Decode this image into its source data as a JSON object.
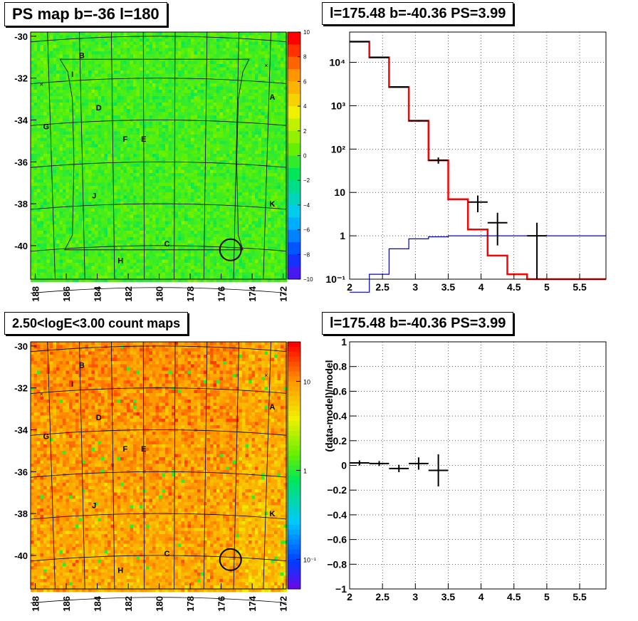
{
  "panels": {
    "ps_map": {
      "title": "PS map b=-36 l=180",
      "colorbar_ticks": [
        "10",
        "8",
        "6",
        "4",
        "2",
        "0",
        "−2",
        "−4",
        "−6",
        "−8",
        "−10"
      ]
    },
    "count_map": {
      "title": "2.50<logE<3.00 count maps",
      "colorbar_ticks": [
        "10",
        "1",
        "10⁻¹"
      ]
    },
    "spectrum": {
      "title": "l=175.48 b=-40.36 PS=3.99"
    },
    "residual": {
      "title": "l=175.48 b=-40.36 PS=3.99"
    }
  },
  "chart_data": [
    {
      "type": "heatmap",
      "name": "ps_map",
      "title": "PS map b=-36 l=180",
      "x_ticks": [
        188,
        186,
        184,
        182,
        180,
        178,
        176,
        174,
        172
      ],
      "y_ticks": [
        -30,
        -32,
        -34,
        -36,
        -38,
        -40
      ],
      "xlim": [
        188.3,
        171.8
      ],
      "ylim": [
        -41.6,
        -29.8
      ],
      "z_range": [
        -10,
        10
      ],
      "colorbar_ticks": [
        10,
        8,
        6,
        4,
        2,
        0,
        -2,
        -4,
        -6,
        -8,
        -10
      ],
      "source_labels": [
        {
          "label": "B",
          "l": 185.0,
          "b": -30.9
        },
        {
          "label": "I",
          "l": 185.6,
          "b": -31.8
        },
        {
          "label": "A",
          "l": 172.7,
          "b": -32.9
        },
        {
          "label": "D",
          "l": 183.9,
          "b": -33.4
        },
        {
          "label": "G",
          "l": 187.3,
          "b": -34.3
        },
        {
          "label": "F",
          "l": 182.2,
          "b": -34.9
        },
        {
          "label": "E",
          "l": 181.0,
          "b": -34.9
        },
        {
          "label": "J",
          "l": 184.2,
          "b": -37.6
        },
        {
          "label": "K",
          "l": 172.7,
          "b": -38.0
        },
        {
          "label": "C",
          "l": 179.5,
          "b": -39.9
        },
        {
          "label": "H",
          "l": 182.5,
          "b": -40.7
        }
      ],
      "circle": {
        "l": 175.4,
        "b": -40.2
      }
    },
    {
      "type": "line",
      "name": "spectrum",
      "title": "l=175.48 b=-40.36 PS=3.99",
      "xlim": [
        2,
        5.9
      ],
      "ylim": [
        0.1,
        50000
      ],
      "log_y": true,
      "grid": true,
      "x_ticks": [
        2,
        2.5,
        3,
        3.5,
        4,
        4.5,
        5,
        5.5
      ],
      "y_ticks": [
        "10⁻¹",
        "1",
        "10",
        "10²",
        "10³",
        "10⁴"
      ],
      "series": [
        {
          "color": "#ff0000",
          "style": "step",
          "edges": [
            2,
            2.3,
            2.6,
            2.9,
            3.2,
            3.5,
            3.8,
            4.1,
            4.4,
            4.7,
            5.0,
            5.9
          ],
          "values": [
            30000,
            13000,
            2700,
            450,
            55,
            7,
            1.4,
            0.35,
            0.13,
            0.1,
            0.1
          ]
        },
        {
          "color": "#0000cc",
          "style": "step",
          "edges": [
            2,
            2.3,
            2.6,
            2.9,
            3.2,
            3.5,
            3.8,
            4.1,
            4.4,
            4.7,
            5.0,
            5.9
          ],
          "values": [
            0.05,
            0.13,
            0.5,
            0.85,
            0.95,
            1.0,
            1.0,
            1.0,
            1.0,
            1.0,
            1.0
          ]
        },
        {
          "color": "#000000",
          "style": "errorbar",
          "points": [
            {
              "x": 2.15,
              "y": 30000,
              "xerr": 0.15,
              "ylo": 29500,
              "yhi": 30500
            },
            {
              "x": 2.45,
              "y": 13000,
              "xerr": 0.15,
              "ylo": 12800,
              "yhi": 13200
            },
            {
              "x": 2.75,
              "y": 2700,
              "xerr": 0.15,
              "ylo": 2620,
              "yhi": 2780
            },
            {
              "x": 3.05,
              "y": 450,
              "xerr": 0.15,
              "ylo": 430,
              "yhi": 470
            },
            {
              "x": 3.35,
              "y": 55,
              "xerr": 0.15,
              "ylo": 46,
              "yhi": 64
            },
            {
              "x": 3.95,
              "y": 6,
              "xerr": 0.15,
              "ylo": 3.5,
              "yhi": 8.5
            },
            {
              "x": 4.25,
              "y": 2,
              "xerr": 0.15,
              "ylo": 0.6,
              "yhi": 3.4
            },
            {
              "x": 4.85,
              "y": 1,
              "xerr": 0.15,
              "ylo": 0.1,
              "yhi": 2.0
            }
          ]
        }
      ]
    },
    {
      "type": "heatmap",
      "name": "count_map",
      "title": "2.50<logE<3.00 count maps",
      "x_ticks": [
        188,
        186,
        184,
        182,
        180,
        178,
        176,
        174,
        172
      ],
      "y_ticks": [
        -30,
        -32,
        -34,
        -36,
        -38,
        -40
      ],
      "xlim": [
        188.3,
        171.8
      ],
      "ylim": [
        -41.6,
        -29.8
      ],
      "log_z": true,
      "colorbar_ticks": [
        "10",
        "1",
        "10⁻¹"
      ],
      "source_labels": [
        {
          "label": "B",
          "l": 185.0,
          "b": -30.9
        },
        {
          "label": "I",
          "l": 185.6,
          "b": -31.8
        },
        {
          "label": "A",
          "l": 172.7,
          "b": -32.9
        },
        {
          "label": "D",
          "l": 183.9,
          "b": -33.4
        },
        {
          "label": "G",
          "l": 187.3,
          "b": -34.3
        },
        {
          "label": "F",
          "l": 182.2,
          "b": -34.9
        },
        {
          "label": "E",
          "l": 181.0,
          "b": -34.9
        },
        {
          "label": "J",
          "l": 184.2,
          "b": -37.6
        },
        {
          "label": "K",
          "l": 172.7,
          "b": -38.0
        },
        {
          "label": "C",
          "l": 179.5,
          "b": -39.9
        },
        {
          "label": "H",
          "l": 182.5,
          "b": -40.7
        }
      ],
      "circle": {
        "l": 175.4,
        "b": -40.2
      }
    },
    {
      "type": "scatter",
      "name": "residual",
      "title": "l=175.48 b=-40.36 PS=3.99",
      "ylabel": "(data-model)/model",
      "xlim": [
        2,
        5.9
      ],
      "ylim": [
        -1,
        1
      ],
      "grid": true,
      "x_ticks": [
        2,
        2.5,
        3,
        3.5,
        4,
        4.5,
        5,
        5.5
      ],
      "y_ticks": [
        -1,
        -0.8,
        -0.6,
        -0.4,
        -0.2,
        0,
        0.2,
        0.4,
        0.6,
        0.8,
        1
      ],
      "points": [
        {
          "x": 2.15,
          "y": 0.02,
          "xerr": 0.15,
          "yerr": 0.02
        },
        {
          "x": 2.45,
          "y": 0.015,
          "xerr": 0.15,
          "yerr": 0.02
        },
        {
          "x": 2.75,
          "y": -0.025,
          "xerr": 0.15,
          "yerr": 0.03
        },
        {
          "x": 3.05,
          "y": 0.015,
          "xerr": 0.15,
          "yerr": 0.05
        },
        {
          "x": 3.35,
          "y": -0.04,
          "xerr": 0.15,
          "yerr": 0.13
        }
      ]
    }
  ]
}
